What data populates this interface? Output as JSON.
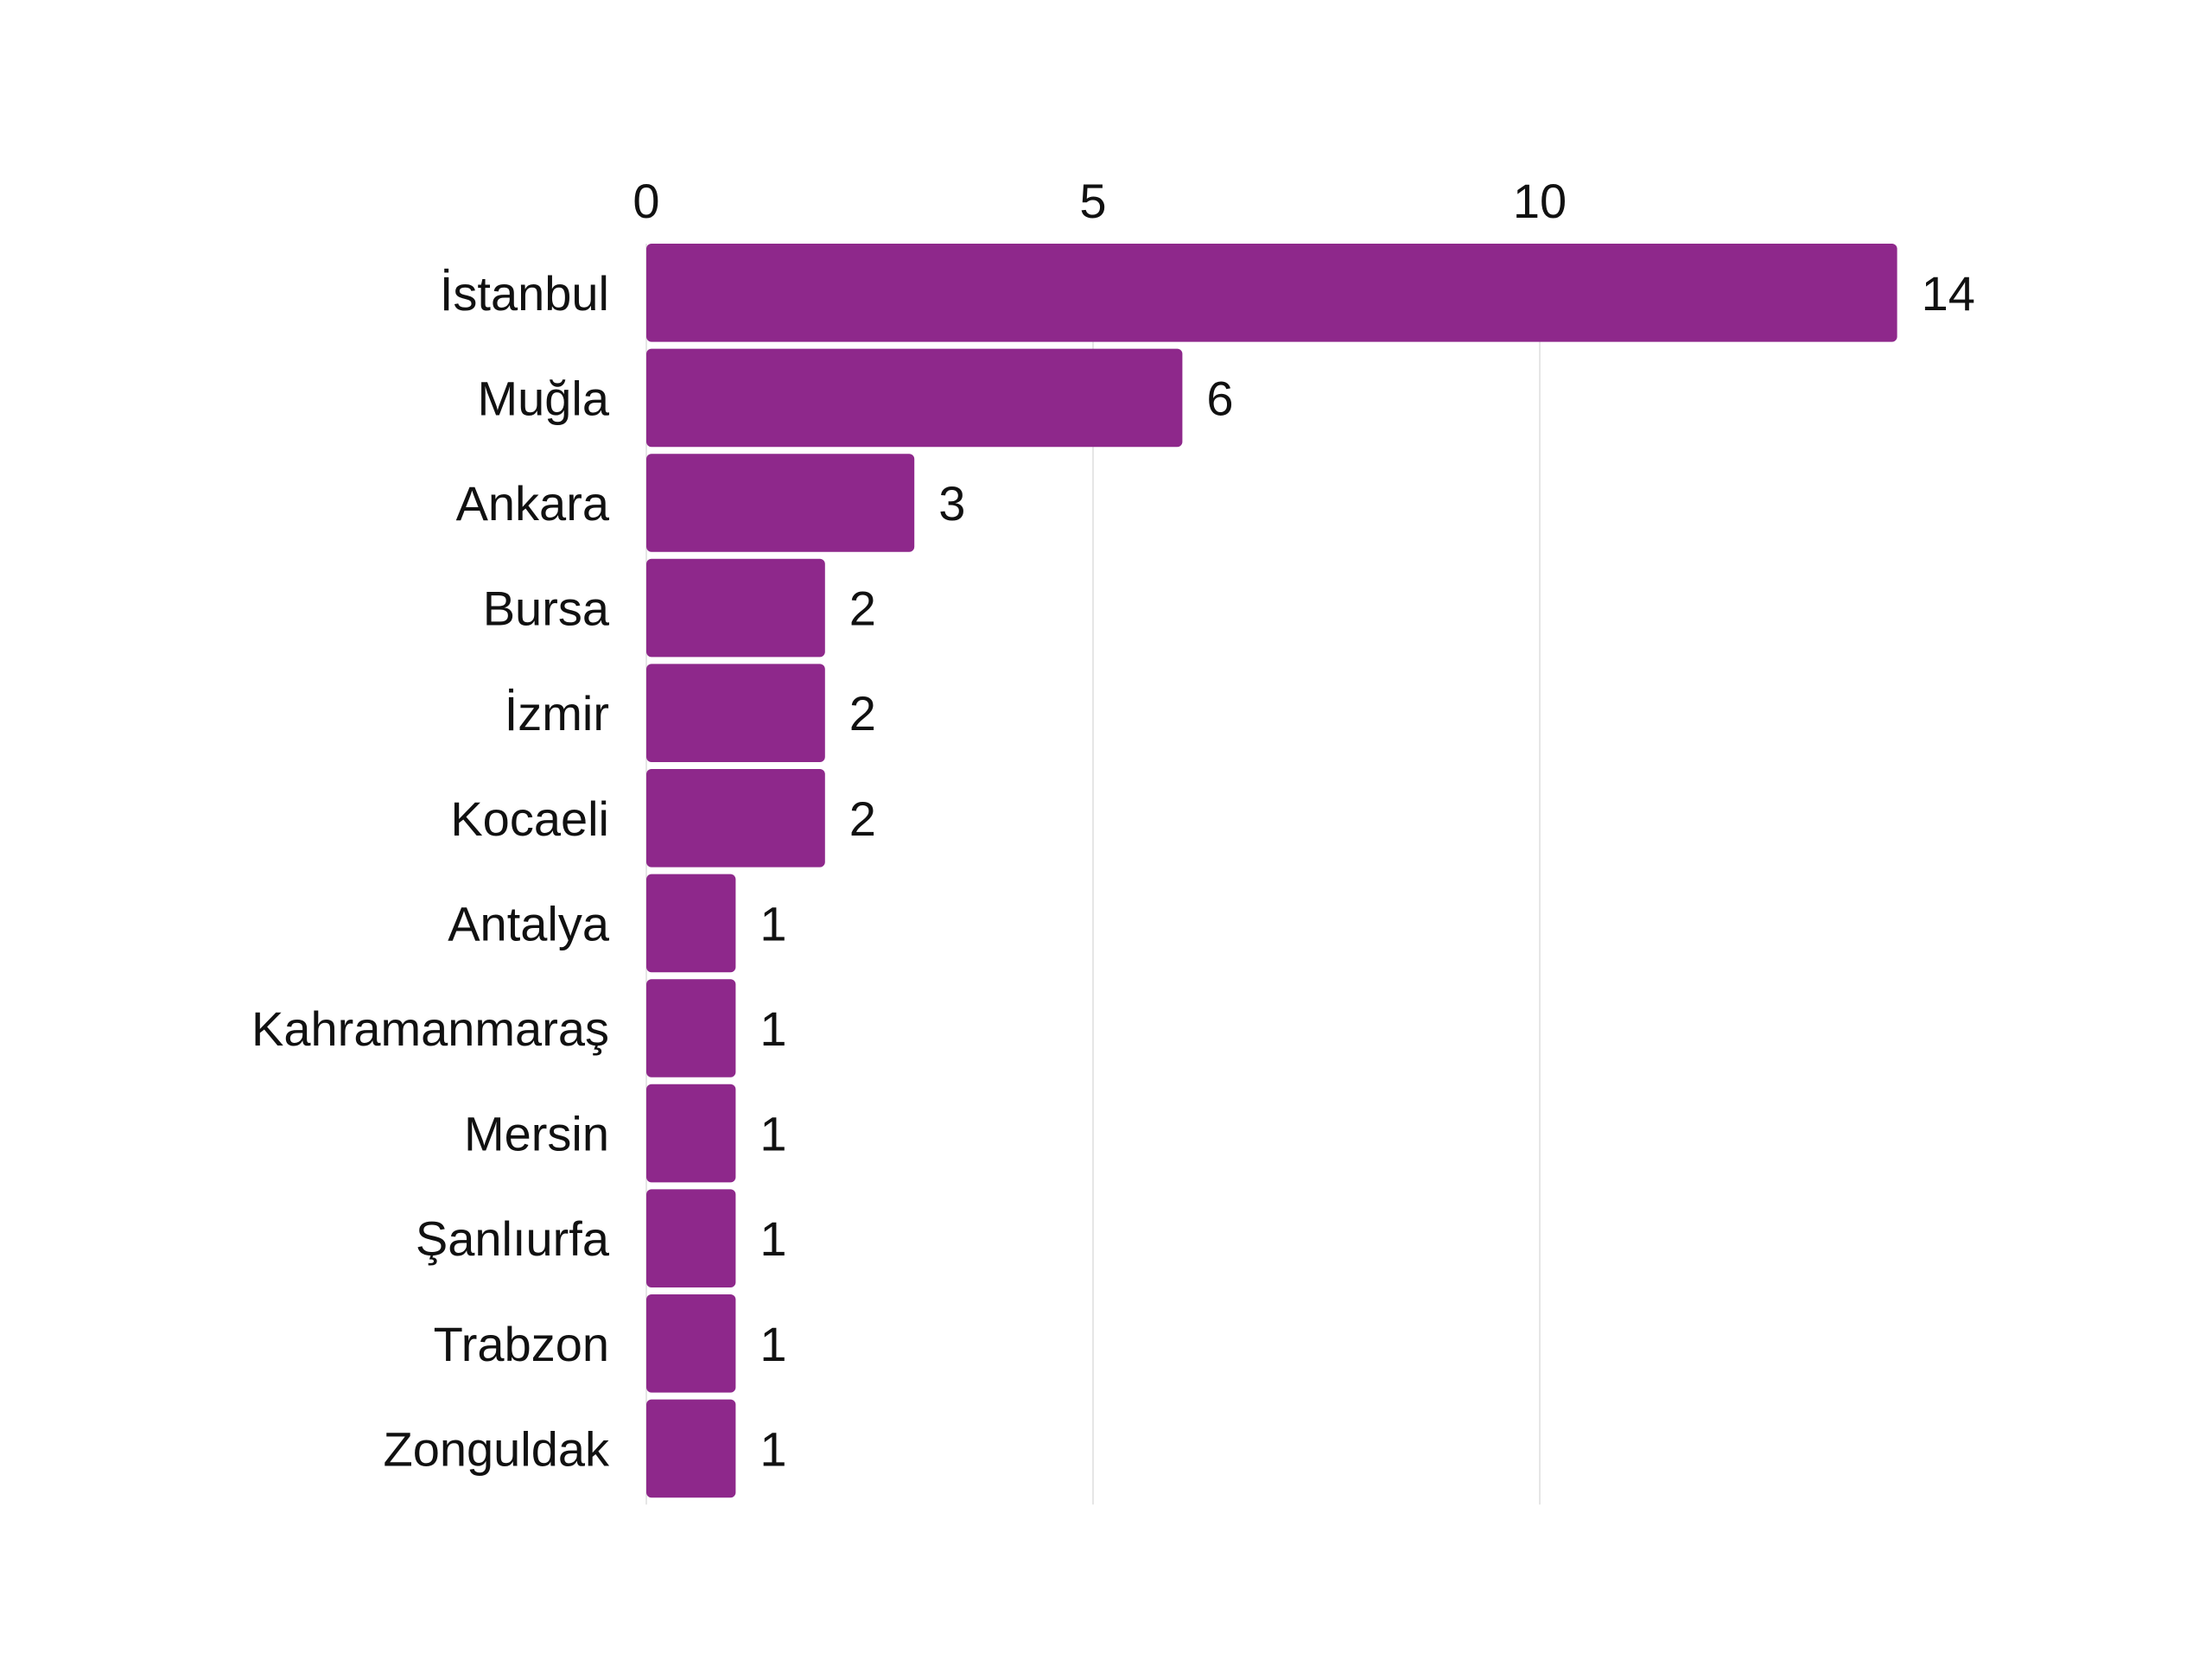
{
  "chart_data": {
    "type": "bar",
    "orientation": "horizontal",
    "categories": [
      "İstanbul",
      "Muğla",
      "Ankara",
      "Bursa",
      "İzmir",
      "Kocaeli",
      "Antalya",
      "Kahramanmaraş",
      "Mersin",
      "Şanlıurfa",
      "Trabzon",
      "Zonguldak"
    ],
    "values": [
      14,
      6,
      3,
      2,
      2,
      2,
      1,
      1,
      1,
      1,
      1,
      1
    ],
    "value_labels": [
      "14",
      "6",
      "3",
      "2",
      "2",
      "2",
      "1",
      "1",
      "1",
      "1",
      "1",
      "1"
    ],
    "title": "",
    "xlabel": "",
    "ylabel": "",
    "xlim": [
      0,
      14
    ],
    "x_ticks": [
      0,
      5,
      10
    ],
    "x_tick_labels": [
      "0",
      "5",
      "10"
    ],
    "x_axis_position": "top",
    "grid": true,
    "legend": "none",
    "bar_color": "#8e288b",
    "gridline_color": "#e6e6e6",
    "text_color": "#111111"
  }
}
